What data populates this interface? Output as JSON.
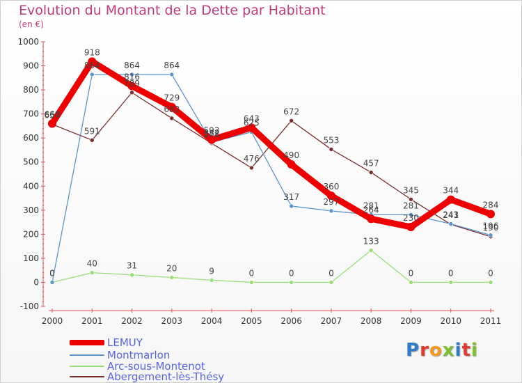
{
  "title": "Evolution du Montant de la Dette par Habitant",
  "unit": "(en €)",
  "logo": "Proxiti",
  "logo_colors": [
    "#2f7ac8",
    "#e03a2e",
    "#f39a1e",
    "#7bbf2a",
    "#2f7ac8",
    "#e03a2e",
    "#7bbf2a"
  ],
  "chart_data": {
    "type": "line",
    "x": [
      "2000",
      "2001",
      "2002",
      "2003",
      "2004",
      "2005",
      "2006",
      "2007",
      "2008",
      "2009",
      "2010",
      "2011"
    ],
    "ylim": [
      -100,
      1000
    ],
    "yticks": [
      "-100",
      "0",
      "100",
      "200",
      "300",
      "400",
      "500",
      "600",
      "700",
      "800",
      "900",
      "1000"
    ],
    "grid": false,
    "legend_position": "bottom-left",
    "series": [
      {
        "name": "LEMUY",
        "color": "#ee0000",
        "values": [
          660,
          918,
          816,
          729,
          593,
          643,
          490,
          360,
          264,
          230,
          344,
          284
        ],
        "labels": [
          "660",
          "918",
          "816",
          "729",
          "593",
          "643",
          "490",
          "360",
          "264",
          "230",
          "344",
          "284"
        ]
      },
      {
        "name": "Montmarlon",
        "color": "#5b93cc",
        "values": [
          0,
          864,
          864,
          864,
          582,
          625,
          317,
          297,
          281,
          281,
          243,
          196
        ],
        "labels": [
          "0",
          "864",
          "864",
          "864",
          "582",
          "625",
          "317",
          "297",
          "281",
          "281",
          "243",
          "196"
        ]
      },
      {
        "name": "Arc-sous-Montenot",
        "color": "#99dd77",
        "values": [
          0,
          40,
          31,
          20,
          9,
          0,
          0,
          0,
          133,
          0,
          0,
          0
        ],
        "labels": [
          "0",
          "40",
          "31",
          "20",
          "9",
          "0",
          "0",
          "0",
          "133",
          "0",
          "0",
          "0"
        ]
      },
      {
        "name": "Abergement-lès-Thésy",
        "color": "#7a2e2e",
        "values": [
          657,
          591,
          789,
          682,
          578,
          476,
          672,
          553,
          457,
          345,
          241,
          190
        ],
        "labels": [
          "657",
          "591",
          "789",
          "682",
          "578",
          "476",
          "672",
          "553",
          "457",
          "345",
          "241",
          "190"
        ]
      }
    ]
  }
}
